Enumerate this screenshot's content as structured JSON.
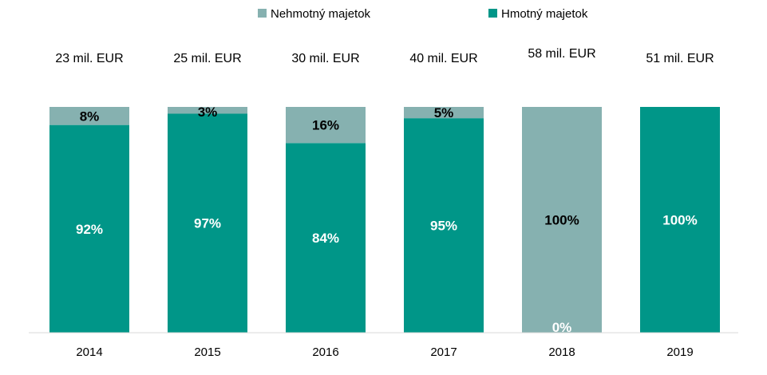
{
  "chart_data": {
    "type": "bar",
    "stacked": true,
    "percent": true,
    "categories": [
      "2014",
      "2015",
      "2016",
      "2017",
      "2018",
      "2019"
    ],
    "totals": [
      "23 mil. EUR",
      "25 mil. EUR",
      "30 mil. EUR",
      "40 mil. EUR",
      "58 mil. EUR",
      "51 mil. EUR"
    ],
    "series": [
      {
        "name": "Hmotný majetok",
        "color": "#009688",
        "label_color": "#ffffff",
        "values": [
          92,
          97,
          84,
          95,
          0,
          100
        ],
        "labels": [
          "92%",
          "97%",
          "84%",
          "95%",
          "0%",
          "100%"
        ]
      },
      {
        "name": "Nehmotný majetok",
        "color": "#86b1b0",
        "label_color": "#000000",
        "values": [
          8,
          3,
          16,
          5,
          100,
          0
        ],
        "labels": [
          "8%",
          "3%",
          "16%",
          "5%",
          "100%",
          ""
        ]
      }
    ],
    "legend_order": [
      "Nehmotný majetok",
      "Hmotný majetok"
    ],
    "legend_position": "top-center",
    "title": "",
    "xlabel": "",
    "ylabel": "",
    "ylim": [
      0,
      100
    ],
    "grid": false
  }
}
